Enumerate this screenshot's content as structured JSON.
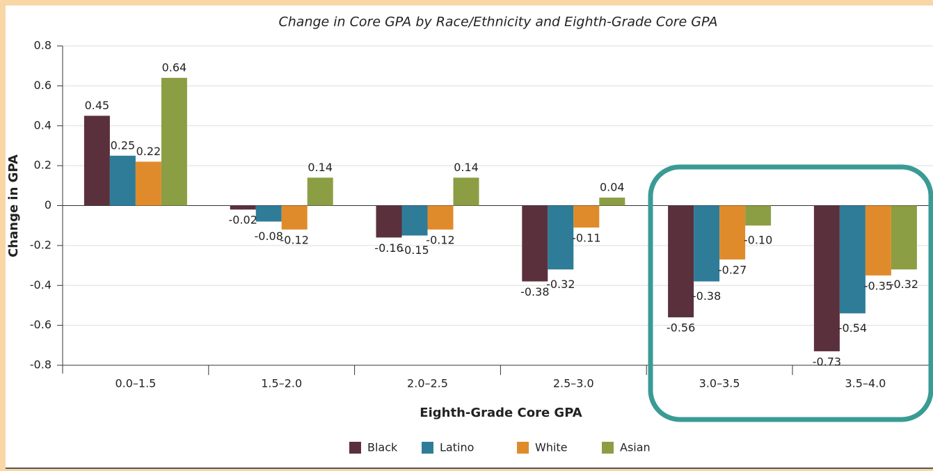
{
  "chart_data": {
    "type": "bar",
    "title": "Change in Core GPA by Race/Ethnicity and Eighth-Grade Core GPA",
    "x_label": "Eighth-Grade Core GPA",
    "y_label": "Change in GPA",
    "categories": [
      "0.0–1.5",
      "1.5–2.0",
      "2.0–2.5",
      "2.5–3.0",
      "3.0–3.5",
      "3.5–4.0"
    ],
    "series": [
      {
        "name": "Black",
        "color": "#5b303d",
        "values": [
          0.45,
          -0.02,
          -0.16,
          -0.38,
          -0.56,
          -0.73
        ],
        "value_labels": [
          "0.45",
          "-0.02",
          "-0.16",
          "-0.38",
          "-0.56",
          "-0.73"
        ]
      },
      {
        "name": "Latino",
        "color": "#2f7c98",
        "values": [
          0.25,
          -0.08,
          -0.15,
          -0.32,
          -0.38,
          -0.54
        ],
        "value_labels": [
          "0.25",
          "-0.08",
          "-0.15",
          "-0.32",
          "-0.38",
          "-0.54"
        ]
      },
      {
        "name": "White",
        "color": "#e08b2b",
        "values": [
          0.22,
          -0.12,
          -0.12,
          -0.11,
          -0.27,
          -0.35
        ],
        "value_labels": [
          "0.22",
          "-0.12",
          "-0.12",
          "-0.11",
          "-0.27",
          "-0.35"
        ]
      },
      {
        "name": "Asian",
        "color": "#8b9e44",
        "values": [
          0.64,
          0.14,
          0.14,
          0.04,
          -0.1,
          -0.32
        ],
        "value_labels": [
          "0.64",
          "0.14",
          "0.14",
          "0.04",
          "-0.10",
          "-0.32"
        ]
      }
    ],
    "ylim": [
      -0.8,
      0.8
    ],
    "yticks": [
      0.8,
      0.6,
      0.4,
      0.2,
      0,
      -0.2,
      -0.4,
      -0.6,
      -0.8
    ],
    "grid": true,
    "legend": "bottom"
  }
}
